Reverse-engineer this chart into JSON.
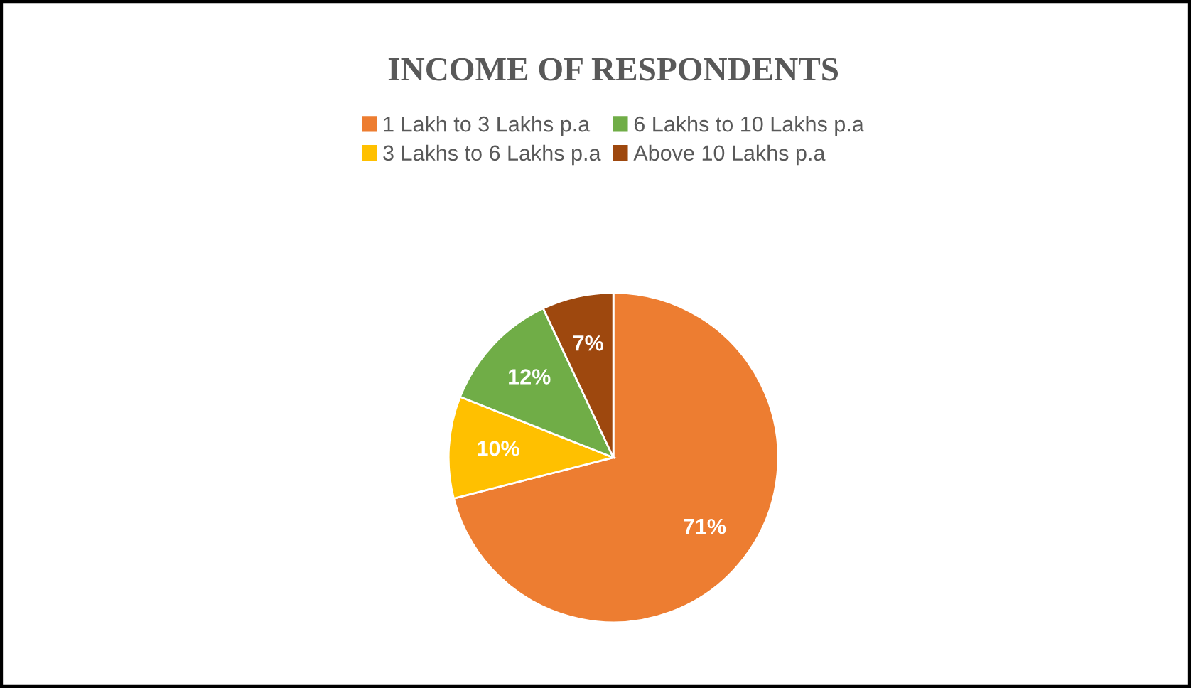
{
  "chart_data": {
    "type": "pie",
    "title": "INCOME OF RESPONDENTS",
    "categories": [
      "1 Lakh to 3 Lakhs p.a",
      "3 Lakhs to 6 Lakhs p.a",
      "6 Lakhs to 10 Lakhs p.a",
      "Above 10 Lakhs p.a"
    ],
    "values": [
      71,
      10,
      12,
      7
    ],
    "colors": [
      "#ed7d31",
      "#ffc000",
      "#70ad47",
      "#9e480e"
    ],
    "value_labels": [
      "71%",
      "10%",
      "12%",
      "7%"
    ],
    "legend": "top"
  }
}
